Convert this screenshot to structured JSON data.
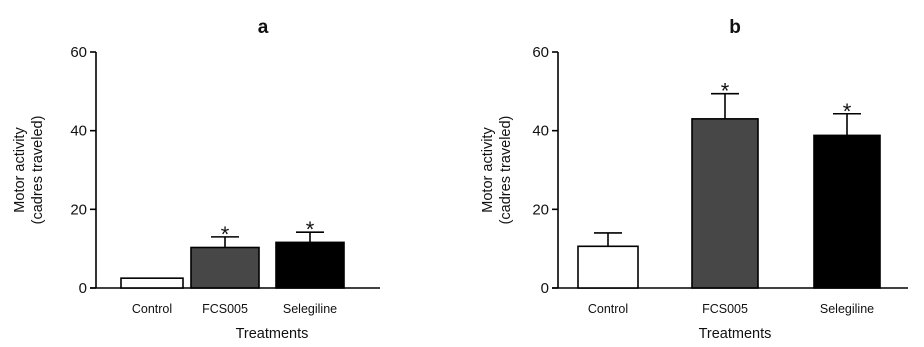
{
  "chart_data": [
    {
      "type": "bar",
      "title": "a",
      "categories": [
        "Control",
        "FCS005",
        "Selegiline"
      ],
      "values": [
        2.5,
        10.3,
        11.6
      ],
      "errors": [
        0,
        2.7,
        2.6
      ],
      "annotations": [
        "",
        "*",
        "*"
      ],
      "colors": [
        "#ffffff",
        "#474747",
        "#000000"
      ],
      "xlabel": "Treatments",
      "ylabel": [
        "Motor activity",
        "(cadres traveled)"
      ],
      "ylim": [
        0,
        60
      ],
      "yticks": [
        0,
        20,
        40,
        60
      ],
      "grid": false,
      "legend": "none"
    },
    {
      "type": "bar",
      "title": "b",
      "categories": [
        "Control",
        "FCS005",
        "Selegiline"
      ],
      "values": [
        10.6,
        43.0,
        38.8
      ],
      "errors": [
        3.4,
        6.4,
        5.5
      ],
      "annotations": [
        "",
        "*",
        "*"
      ],
      "colors": [
        "#ffffff",
        "#474747",
        "#000000"
      ],
      "xlabel": "Treatments",
      "ylabel": [
        "Motor activity",
        "(cadres traveled)"
      ],
      "ylim": [
        0,
        60
      ],
      "yticks": [
        0,
        20,
        40,
        60
      ],
      "grid": false,
      "legend": "none"
    }
  ]
}
